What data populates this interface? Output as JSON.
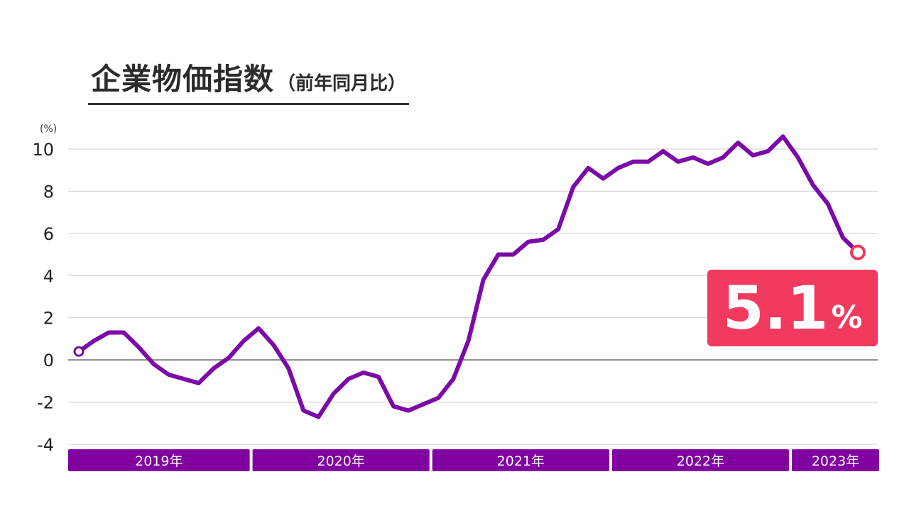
{
  "title": "企業物価指数",
  "subtitle": "（前年同月比）",
  "unit_label": "(%)",
  "callout": {
    "value": "5.1",
    "unit": "%"
  },
  "colors": {
    "line": "#7b0aa8",
    "year_band": "#8000a0",
    "callout": "#f23a5f",
    "grid": "#cccccc",
    "zero_line": "#888888"
  },
  "chart_data": {
    "type": "line",
    "ylim": [
      -4,
      10
    ],
    "yticks": [
      "10",
      "8",
      "6",
      "4",
      "2",
      "0",
      "-2",
      "-4"
    ],
    "ytick_values": [
      10,
      8,
      6,
      4,
      2,
      0,
      -2,
      -4
    ],
    "years": [
      "2019年",
      "2020年",
      "2021年",
      "2022年",
      "2023年"
    ],
    "series": [
      {
        "values": [
          0.4,
          0.9,
          1.3,
          1.3,
          0.6,
          -0.2,
          -0.7,
          -0.9,
          -1.1,
          -0.4,
          0.1,
          0.9,
          1.5,
          0.7,
          -0.4,
          -2.4,
          -2.7,
          -1.6,
          -0.9,
          -0.6,
          -0.8,
          -2.2,
          -2.4,
          -2.1,
          -1.8,
          -0.9,
          0.9,
          3.8,
          5.0,
          5.0,
          5.6,
          5.7,
          6.2,
          8.2,
          9.1,
          8.6,
          9.1,
          9.4,
          9.4,
          9.9,
          9.4,
          9.6,
          9.3,
          9.6,
          10.3,
          9.7,
          9.9,
          10.6,
          9.6,
          8.3,
          7.4,
          5.8,
          5.1
        ]
      }
    ]
  }
}
